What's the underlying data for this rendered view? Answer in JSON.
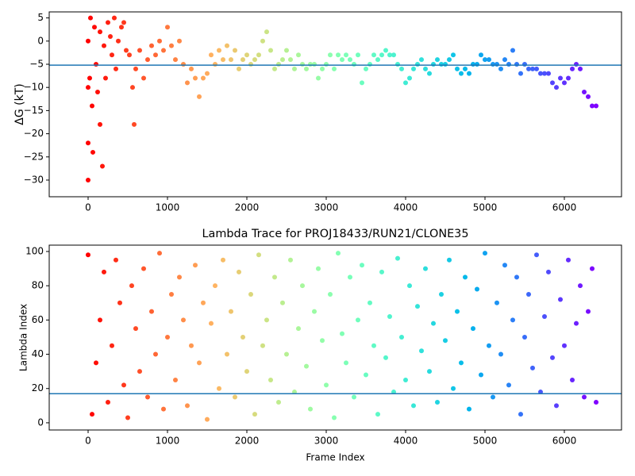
{
  "chart_data": [
    {
      "type": "scatter",
      "ylabel": "ΔG (kT)",
      "colormap": "rainbow_r",
      "x": [
        0,
        0,
        0,
        0,
        20,
        30,
        50,
        60,
        80,
        100,
        120,
        150,
        150,
        180,
        200,
        220,
        250,
        280,
        300,
        330,
        350,
        380,
        420,
        450,
        480,
        520,
        560,
        580,
        600,
        650,
        700,
        750,
        800,
        850,
        900,
        950,
        1000,
        1050,
        1100,
        1150,
        1200,
        1250,
        1300,
        1350,
        1400,
        1450,
        1500,
        1550,
        1600,
        1650,
        1700,
        1750,
        1800,
        1850,
        1900,
        1950,
        2000,
        2050,
        2100,
        2150,
        2200,
        2250,
        2300,
        2350,
        2400,
        2450,
        2500,
        2550,
        2600,
        2650,
        2700,
        2750,
        2800,
        2850,
        2900,
        2950,
        3000,
        3050,
        3100,
        3150,
        3200,
        3250,
        3300,
        3350,
        3400,
        3450,
        3500,
        3550,
        3600,
        3650,
        3700,
        3750,
        3800,
        3850,
        3900,
        3950,
        4000,
        4050,
        4100,
        4150,
        4200,
        4250,
        4300,
        4350,
        4400,
        4450,
        4500,
        4550,
        4600,
        4650,
        4700,
        4750,
        4800,
        4850,
        4900,
        4950,
        5000,
        5050,
        5100,
        5150,
        5200,
        5250,
        5300,
        5350,
        5400,
        5450,
        5500,
        5550,
        5600,
        5650,
        5700,
        5750,
        5800,
        5850,
        5900,
        5950,
        6000,
        6050,
        6100,
        6150,
        6200,
        6250,
        6300,
        6350,
        6400
      ],
      "y": [
        0,
        -10,
        -22,
        -30,
        -8,
        5,
        -14,
        -24,
        3,
        -5,
        -11,
        -18,
        2,
        -27,
        -1,
        -8,
        4,
        1,
        -3,
        5,
        -6,
        0,
        3,
        4,
        -2,
        -3,
        -10,
        -18,
        -6,
        -2,
        -8,
        -4,
        -1,
        -3,
        0,
        -2,
        3,
        -1,
        -4,
        0,
        -5,
        -9,
        -6,
        -8,
        -12,
        -8,
        -7,
        -3,
        -5,
        -2,
        -4,
        -1,
        -4,
        -2,
        -6,
        -4,
        -3,
        -5,
        -4,
        -3,
        0,
        2,
        -2,
        -6,
        -5,
        -4,
        -2,
        -4,
        -6,
        -3,
        -5,
        -6,
        -5,
        -5,
        -8,
        -6,
        -5,
        -3,
        -6,
        -3,
        -4,
        -3,
        -4,
        -5,
        -3,
        -9,
        -6,
        -5,
        -3,
        -4,
        -3,
        -2,
        -3,
        -3,
        -5,
        -6,
        -9,
        -8,
        -6,
        -5,
        -4,
        -6,
        -7,
        -5,
        -4,
        -5,
        -5,
        -4,
        -3,
        -6,
        -7,
        -6,
        -7,
        -5,
        -5,
        -3,
        -4,
        -4,
        -5,
        -5,
        -6,
        -4,
        -5,
        -2,
        -5,
        -7,
        -5,
        -6,
        -6,
        -6,
        -7,
        -7,
        -7,
        -9,
        -10,
        -8,
        -9,
        -8,
        -6,
        -5,
        -6,
        -11,
        -12,
        -14,
        -14
      ],
      "xlim": [
        -490,
        6720
      ],
      "xticks": [
        0,
        1000,
        2000,
        3000,
        4000,
        5000,
        6000
      ],
      "ylim": [
        -33.6,
        6.3
      ],
      "yticks": [
        -30,
        -25,
        -20,
        -15,
        -10,
        -5,
        0,
        5
      ],
      "hline": -5.2,
      "hline_color": "#1f77b4"
    },
    {
      "type": "scatter",
      "title": "Lambda Trace for PROJ18433/RUN21/CLONE35",
      "xlabel": "Frame Index",
      "ylabel": "Lambda Index",
      "colormap": "rainbow_r",
      "x": [
        0,
        50,
        100,
        150,
        200,
        250,
        300,
        350,
        400,
        450,
        500,
        550,
        600,
        650,
        700,
        750,
        800,
        850,
        900,
        950,
        1000,
        1050,
        1100,
        1150,
        1200,
        1250,
        1300,
        1350,
        1400,
        1450,
        1500,
        1550,
        1600,
        1650,
        1700,
        1750,
        1800,
        1850,
        1900,
        1950,
        2000,
        2050,
        2100,
        2150,
        2200,
        2250,
        2300,
        2350,
        2400,
        2450,
        2500,
        2550,
        2600,
        2650,
        2700,
        2750,
        2800,
        2850,
        2900,
        2950,
        3000,
        3050,
        3100,
        3150,
        3200,
        3250,
        3300,
        3350,
        3400,
        3450,
        3500,
        3550,
        3600,
        3650,
        3700,
        3750,
        3800,
        3850,
        3900,
        3950,
        4000,
        4050,
        4100,
        4150,
        4200,
        4250,
        4300,
        4350,
        4400,
        4450,
        4500,
        4550,
        4600,
        4650,
        4700,
        4750,
        4800,
        4850,
        4900,
        4950,
        5000,
        5050,
        5100,
        5150,
        5200,
        5250,
        5300,
        5350,
        5400,
        5450,
        5500,
        5550,
        5600,
        5650,
        5700,
        5750,
        5800,
        5850,
        5900,
        5950,
        6000,
        6050,
        6100,
        6150,
        6200,
        6250,
        6300,
        6350,
        6400
      ],
      "y": [
        98,
        5,
        35,
        60,
        88,
        12,
        45,
        95,
        70,
        22,
        3,
        80,
        55,
        30,
        90,
        15,
        65,
        40,
        99,
        8,
        50,
        75,
        25,
        85,
        60,
        10,
        45,
        92,
        35,
        70,
        2,
        58,
        80,
        20,
        95,
        40,
        65,
        15,
        88,
        50,
        30,
        75,
        5,
        98,
        45,
        60,
        25,
        85,
        12,
        70,
        40,
        95,
        18,
        55,
        80,
        33,
        8,
        65,
        90,
        48,
        22,
        75,
        3,
        99,
        52,
        35,
        85,
        15,
        60,
        92,
        28,
        70,
        45,
        5,
        88,
        38,
        62,
        18,
        96,
        50,
        25,
        80,
        10,
        68,
        42,
        90,
        30,
        58,
        12,
        75,
        48,
        95,
        20,
        65,
        35,
        85,
        8,
        55,
        78,
        28,
        99,
        45,
        15,
        70,
        40,
        92,
        22,
        60,
        85,
        5,
        50,
        75,
        32,
        98,
        18,
        62,
        88,
        38,
        10,
        72,
        45,
        95,
        25,
        58,
        80,
        15,
        65,
        90,
        12
      ],
      "xlim": [
        -490,
        6720
      ],
      "xticks": [
        0,
        1000,
        2000,
        3000,
        4000,
        5000,
        6000
      ],
      "ylim": [
        -4.2,
        103.7
      ],
      "yticks": [
        0,
        20,
        40,
        60,
        80,
        100
      ],
      "hline": 17,
      "hline_color": "#1f77b4"
    }
  ]
}
